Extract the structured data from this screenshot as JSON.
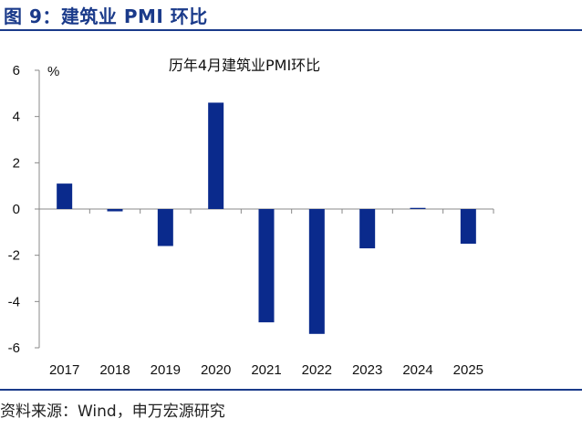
{
  "figure_title": "图 9：建筑业 PMI 环比",
  "source": "资料来源：Wind，申万宏源研究",
  "colors": {
    "bar": "#0a2a8c",
    "accent": "#1a3a8a",
    "axis": "#888888"
  },
  "chart_data": {
    "type": "bar",
    "title": "历年4月建筑业PMI环比",
    "ylabel": "%",
    "xlabel": "",
    "ylim": [
      -6,
      6
    ],
    "yticks": [
      6,
      4,
      2,
      0,
      -2,
      -4,
      -6
    ],
    "categories": [
      "2017",
      "2018",
      "2019",
      "2020",
      "2021",
      "2022",
      "2023",
      "2024",
      "2025"
    ],
    "values": [
      1.1,
      -0.1,
      -1.6,
      4.6,
      -4.9,
      -5.4,
      -1.7,
      0.05,
      -1.5
    ]
  }
}
